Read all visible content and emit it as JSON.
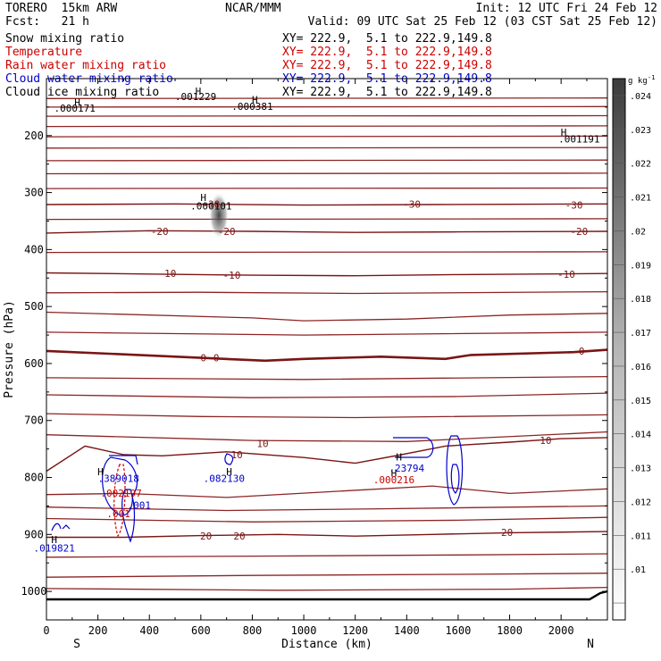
{
  "header": {
    "model": "TORERO  15km ARW",
    "org": "NCAR/MMM",
    "init": "Init: 12 UTC Fri 24 Feb 12",
    "fcst": "Fcst:   21 h",
    "valid": "Valid: 09 UTC Sat 25 Feb 12 (03 CST Sat 25 Feb 12)"
  },
  "fields": [
    {
      "label": "Snow mixing ratio",
      "xy": "XY= 222.9,  5.1 to 222.9,149.8",
      "color": "#000000"
    },
    {
      "label": "Temperature",
      "xy": "XY= 222.9,  5.1 to 222.9,149.8",
      "color": "#cc0000"
    },
    {
      "label": "Rain water mixing ratio",
      "xy": "XY= 222.9,  5.1 to 222.9,149.8",
      "color": "#cc0000"
    },
    {
      "label": "Cloud water mixing ratio",
      "xy": "XY= 222.9,  5.1 to 222.9,149.8",
      "color": "#0000cc"
    },
    {
      "label": "Cloud ice mixing ratio",
      "xy": "XY= 222.9,  5.1 to 222.9,149.8",
      "color": "#000000"
    }
  ],
  "chart_data": {
    "type": "contour",
    "xlabel": "Distance (km)",
    "ylabel": "Pressure (hPa)",
    "xlim": [
      0,
      2180
    ],
    "ylim": [
      1050,
      100
    ],
    "x_ticks": [
      0,
      200,
      400,
      600,
      800,
      1000,
      1200,
      1400,
      1600,
      1800,
      2000
    ],
    "y_ticks": [
      200,
      300,
      400,
      500,
      600,
      700,
      800,
      900,
      1000
    ],
    "endpoints": {
      "left": "S",
      "right": "N"
    },
    "colorbar": {
      "unit": "g kg",
      "unit_exp": "-1",
      "ticks": [
        ".01",
        ".011",
        ".012",
        ".013",
        ".014",
        ".015",
        ".016",
        ".017",
        ".018",
        ".019",
        ".02",
        ".021",
        ".022",
        ".023",
        ".024"
      ]
    },
    "temperature_contours": [
      {
        "value": -30,
        "p": [
          [
            0,
            321
          ],
          [
            500,
            320
          ],
          [
            1000,
            322
          ],
          [
            1500,
            321
          ],
          [
            2180,
            320
          ]
        ]
      },
      {
        "value": -20,
        "p": [
          [
            0,
            371
          ],
          [
            400,
            367
          ],
          [
            800,
            368
          ],
          [
            1200,
            370
          ],
          [
            1600,
            369
          ],
          [
            2180,
            368
          ]
        ]
      },
      {
        "value": -10,
        "p": [
          [
            0,
            441
          ],
          [
            400,
            443
          ],
          [
            800,
            445
          ],
          [
            1200,
            446
          ],
          [
            1600,
            444
          ],
          [
            2180,
            442
          ]
        ]
      },
      {
        "value": 0,
        "p": [
          [
            0,
            578
          ],
          [
            300,
            584
          ],
          [
            600,
            590
          ],
          [
            850,
            595
          ],
          [
            1000,
            592
          ],
          [
            1300,
            588
          ],
          [
            1550,
            592
          ],
          [
            1650,
            585
          ],
          [
            2050,
            580
          ],
          [
            2180,
            576
          ]
        ]
      },
      {
        "value": 10,
        "p": [
          [
            0,
            789
          ],
          [
            150,
            745
          ],
          [
            300,
            760
          ],
          [
            450,
            762
          ],
          [
            700,
            755
          ],
          [
            1000,
            765
          ],
          [
            1200,
            775
          ],
          [
            1380,
            760
          ],
          [
            1550,
            745
          ],
          [
            1800,
            738
          ],
          [
            2000,
            732
          ],
          [
            2180,
            730
          ]
        ]
      },
      {
        "value": 20,
        "p": [
          [
            0,
            905
          ],
          [
            300,
            905
          ],
          [
            600,
            902
          ],
          [
            900,
            900
          ],
          [
            1200,
            903
          ],
          [
            1500,
            900
          ],
          [
            1800,
            897
          ],
          [
            2180,
            895
          ]
        ]
      }
    ],
    "extra_isotherms": [
      [
        [
          0,
          135
        ],
        [
          2180,
          134
        ]
      ],
      [
        [
          0,
          150
        ],
        [
          2180,
          149
        ]
      ],
      [
        [
          0,
          166
        ],
        [
          2180,
          165
        ]
      ],
      [
        [
          0,
          184
        ],
        [
          2180,
          183
        ]
      ],
      [
        [
          0,
          202
        ],
        [
          2180,
          201
        ]
      ],
      [
        [
          0,
          222
        ],
        [
          2180,
          221
        ]
      ],
      [
        [
          0,
          244
        ],
        [
          2180,
          243
        ]
      ],
      [
        [
          0,
          267
        ],
        [
          2180,
          266
        ]
      ],
      [
        [
          0,
          293
        ],
        [
          2180,
          292
        ]
      ],
      [
        [
          0,
          347
        ],
        [
          2180,
          346
        ]
      ],
      [
        [
          0,
          405
        ],
        [
          2180,
          404
        ]
      ],
      [
        [
          0,
          476
        ],
        [
          600,
          475
        ],
        [
          1200,
          477
        ],
        [
          2180,
          474
        ]
      ],
      [
        [
          0,
          510
        ],
        [
          800,
          520
        ],
        [
          1000,
          525
        ],
        [
          1400,
          522
        ],
        [
          1800,
          515
        ],
        [
          2180,
          512
        ]
      ],
      [
        [
          0,
          545
        ],
        [
          1000,
          550
        ],
        [
          2180,
          545
        ]
      ],
      [
        [
          0,
          625
        ],
        [
          1000,
          628
        ],
        [
          2180,
          623
        ]
      ],
      [
        [
          0,
          655
        ],
        [
          800,
          660
        ],
        [
          1600,
          658
        ],
        [
          2180,
          652
        ]
      ],
      [
        [
          0,
          688
        ],
        [
          600,
          693
        ],
        [
          1200,
          695
        ],
        [
          2180,
          690
        ]
      ],
      [
        [
          0,
          725
        ],
        [
          800,
          735
        ],
        [
          1400,
          737
        ],
        [
          2180,
          720
        ]
      ],
      [
        [
          0,
          830
        ],
        [
          300,
          828
        ],
        [
          700,
          835
        ],
        [
          1100,
          825
        ],
        [
          1500,
          815
        ],
        [
          1800,
          828
        ],
        [
          2180,
          820
        ]
      ],
      [
        [
          0,
          852
        ],
        [
          700,
          858
        ],
        [
          1300,
          855
        ],
        [
          2180,
          850
        ]
      ],
      [
        [
          0,
          872
        ],
        [
          800,
          878
        ],
        [
          1600,
          875
        ],
        [
          2180,
          870
        ]
      ],
      [
        [
          0,
          940
        ],
        [
          800,
          938
        ],
        [
          1600,
          936
        ],
        [
          2180,
          934
        ]
      ],
      [
        [
          0,
          975
        ],
        [
          800,
          972
        ],
        [
          1600,
          970
        ],
        [
          2180,
          968
        ]
      ],
      [
        [
          0,
          995
        ],
        [
          900,
          998
        ],
        [
          1800,
          996
        ],
        [
          2180,
          993
        ]
      ]
    ],
    "annotations": [
      {
        "x": 110,
        "p": 158,
        "text": ".000171",
        "color": "#000000"
      },
      {
        "x": 580,
        "p": 138,
        "text": ".001229",
        "color": "#000000"
      },
      {
        "x": 800,
        "p": 155,
        "text": ".000381",
        "color": "#000000"
      },
      {
        "x": 2070,
        "p": 212,
        "text": ".001191",
        "color": "#000000"
      },
      {
        "x": 640,
        "p": 330,
        "text": ".000101",
        "color": "#000000"
      },
      {
        "x": 280,
        "p": 808,
        "text": ".389018",
        "color": "#0000cc"
      },
      {
        "x": 290,
        "p": 834,
        "text": ".002197",
        "color": "#cc0000"
      },
      {
        "x": 360,
        "p": 855,
        "text": ".001",
        "color": "#0000cc"
      },
      {
        "x": 280,
        "p": 870,
        "text": ".001",
        "color": "#cc0000"
      },
      {
        "x": 690,
        "p": 808,
        "text": ".082130",
        "color": "#0000cc"
      },
      {
        "x": 1400,
        "p": 790,
        "text": ".23794",
        "color": "#0000cc"
      },
      {
        "x": 1350,
        "p": 810,
        "text": ".000216",
        "color": "#cc0000"
      },
      {
        "x": 30,
        "p": 930,
        "text": ".019821",
        "color": "#0000cc"
      }
    ],
    "contour_labels": [
      {
        "x": 640,
        "p": 320,
        "text": "-30"
      },
      {
        "x": 1420,
        "p": 320,
        "text": "-30"
      },
      {
        "x": 2050,
        "p": 322,
        "text": "-30"
      },
      {
        "x": 440,
        "p": 368,
        "text": "-20"
      },
      {
        "x": 700,
        "p": 368,
        "text": "-20"
      },
      {
        "x": 2070,
        "p": 368,
        "text": "-20"
      },
      {
        "x": 470,
        "p": 442,
        "text": "-10"
      },
      {
        "x": 720,
        "p": 445,
        "text": "-10"
      },
      {
        "x": 2020,
        "p": 443,
        "text": "-10"
      },
      {
        "x": 610,
        "p": 590,
        "text": "0"
      },
      {
        "x": 660,
        "p": 590,
        "text": "0"
      },
      {
        "x": 2080,
        "p": 578,
        "text": "0"
      },
      {
        "x": 740,
        "p": 760,
        "text": "10"
      },
      {
        "x": 840,
        "p": 740,
        "text": "10"
      },
      {
        "x": 1940,
        "p": 735,
        "text": "10"
      },
      {
        "x": 620,
        "p": 903,
        "text": "20"
      },
      {
        "x": 750,
        "p": 903,
        "text": "20"
      },
      {
        "x": 1790,
        "p": 896,
        "text": "20"
      }
    ],
    "highs": [
      {
        "x": 120,
        "p": 148
      },
      {
        "x": 590,
        "p": 128
      },
      {
        "x": 810,
        "p": 143
      },
      {
        "x": 2010,
        "p": 200
      },
      {
        "x": 610,
        "p": 315
      },
      {
        "x": 210,
        "p": 796
      },
      {
        "x": 710,
        "p": 796
      },
      {
        "x": 1370,
        "p": 770
      },
      {
        "x": 1350,
        "p": 798
      },
      {
        "x": 30,
        "p": 915
      }
    ]
  }
}
